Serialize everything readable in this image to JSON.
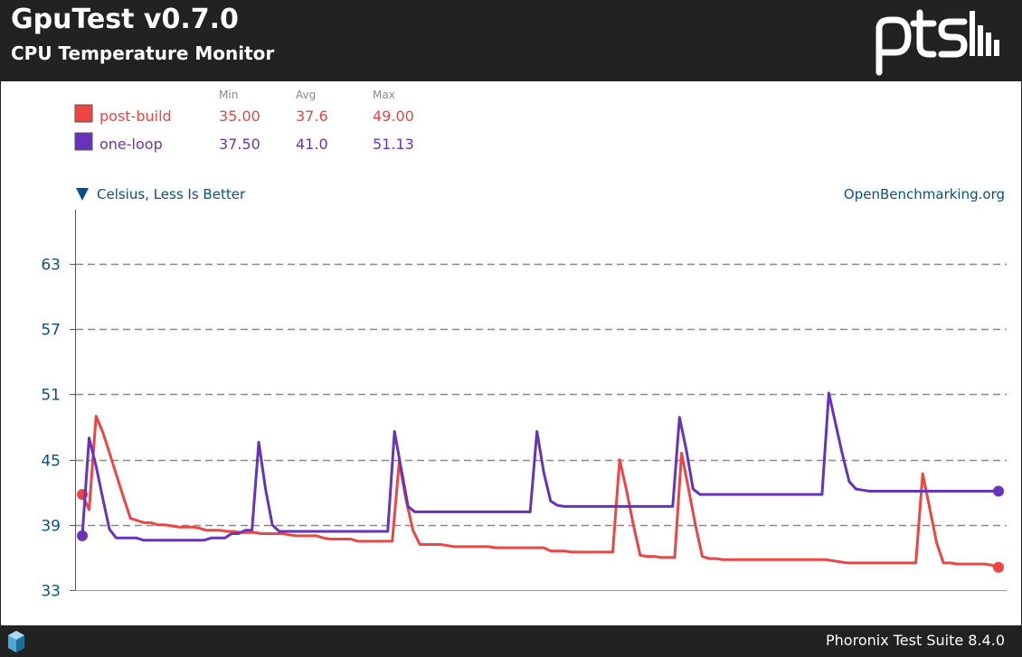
{
  "header": {
    "title": "GpuTest v0.7.0",
    "subtitle": "CPU Temperature Monitor"
  },
  "footer": {
    "text": "Phoronix Test Suite 8.4.0"
  },
  "colors": {
    "header_bg": "#222222",
    "axis_text": "#0b4f86",
    "grid": "#888888"
  },
  "chart_data": {
    "type": "line",
    "ylabel": "Celsius, Less Is Better",
    "source_label": "OpenBenchmarking.org",
    "legend_headers": {
      "min": "Min",
      "avg": "Avg",
      "max": "Max"
    },
    "yticks": [
      33,
      39,
      45,
      51,
      57,
      63
    ],
    "ylim": [
      33,
      68
    ],
    "grid": true,
    "legend_position": "top-left",
    "series": [
      {
        "name": "post-build",
        "color": "#ee4444",
        "min": "35.00",
        "avg": "37.6",
        "max": "49.00",
        "values": [
          41.8,
          40.4,
          49.0,
          47.5,
          45.5,
          43.5,
          41.5,
          39.6,
          39.4,
          39.2,
          39.2,
          39.0,
          39.0,
          38.9,
          38.8,
          38.8,
          38.8,
          38.7,
          38.5,
          38.5,
          38.5,
          38.4,
          38.4,
          38.3,
          38.3,
          38.3,
          38.2,
          38.2,
          38.2,
          38.2,
          38.1,
          38.0,
          38.0,
          38.0,
          38.0,
          37.8,
          37.7,
          37.7,
          37.7,
          37.7,
          37.5,
          37.5,
          37.5,
          37.5,
          37.5,
          37.5,
          44.8,
          41.3,
          38.5,
          37.2,
          37.2,
          37.2,
          37.2,
          37.1,
          37.0,
          37.0,
          37.0,
          37.0,
          37.0,
          37.0,
          36.9,
          36.9,
          36.9,
          36.9,
          36.9,
          36.9,
          36.9,
          36.9,
          36.6,
          36.6,
          36.6,
          36.5,
          36.5,
          36.5,
          36.5,
          36.5,
          36.5,
          36.5,
          45.0,
          42.2,
          39.0,
          36.2,
          36.1,
          36.1,
          36.0,
          36.0,
          36.0,
          45.6,
          42.3,
          39.0,
          36.1,
          35.9,
          35.9,
          35.8,
          35.8,
          35.8,
          35.8,
          35.8,
          35.8,
          35.8,
          35.8,
          35.8,
          35.8,
          35.8,
          35.8,
          35.8,
          35.8,
          35.8,
          35.8,
          35.7,
          35.6,
          35.5,
          35.5,
          35.5,
          35.5,
          35.5,
          35.5,
          35.5,
          35.5,
          35.5,
          35.5,
          35.5,
          43.7,
          40.6,
          37.4,
          35.5,
          35.5,
          35.4,
          35.4,
          35.4,
          35.4,
          35.4,
          35.3,
          35.1
        ]
      },
      {
        "name": "one-loop",
        "color": "#6633bb",
        "min": "37.50",
        "avg": "41.0",
        "max": "51.13",
        "values": [
          38.0,
          47.0,
          44.5,
          41.5,
          38.6,
          37.8,
          37.8,
          37.8,
          37.8,
          37.6,
          37.6,
          37.6,
          37.6,
          37.6,
          37.6,
          37.6,
          37.6,
          37.6,
          37.6,
          37.8,
          37.8,
          37.8,
          38.2,
          38.2,
          38.5,
          38.5,
          46.6,
          42.3,
          39.0,
          38.4,
          38.4,
          38.4,
          38.4,
          38.4,
          38.4,
          38.4,
          38.4,
          38.4,
          38.4,
          38.4,
          38.4,
          38.4,
          38.4,
          38.4,
          38.4,
          38.4,
          47.6,
          44.1,
          40.7,
          40.2,
          40.2,
          40.2,
          40.2,
          40.2,
          40.2,
          40.2,
          40.2,
          40.2,
          40.2,
          40.2,
          40.2,
          40.2,
          40.2,
          40.2,
          40.2,
          40.2,
          40.2,
          47.6,
          43.8,
          41.2,
          40.8,
          40.7,
          40.7,
          40.7,
          40.7,
          40.7,
          40.7,
          40.7,
          40.7,
          40.7,
          40.7,
          40.7,
          40.7,
          40.7,
          40.7,
          40.7,
          40.7,
          40.7,
          48.9,
          45.9,
          42.3,
          41.8,
          41.8,
          41.8,
          41.8,
          41.8,
          41.8,
          41.8,
          41.8,
          41.8,
          41.8,
          41.8,
          41.8,
          41.8,
          41.8,
          41.8,
          41.8,
          41.8,
          41.8,
          41.8,
          51.13,
          48.3,
          45.5,
          43.0,
          42.3,
          42.2,
          42.1,
          42.1,
          42.1,
          42.1,
          42.1,
          42.1,
          42.1,
          42.1,
          42.1,
          42.1,
          42.1,
          42.1,
          42.1,
          42.1,
          42.1,
          42.1,
          42.1,
          42.1,
          42.1,
          42.1
        ]
      }
    ]
  }
}
